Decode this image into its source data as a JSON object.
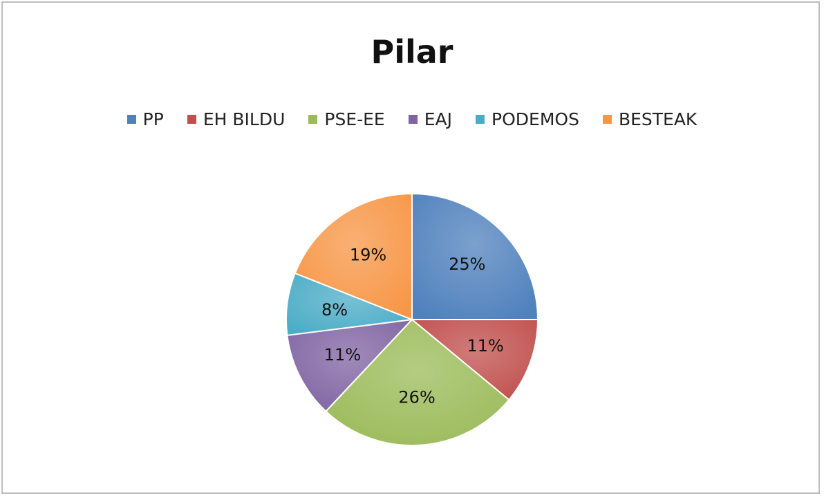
{
  "chart_data": {
    "type": "pie",
    "title": "Pilar",
    "legend_position": "top",
    "categories": [
      "PP",
      "EH BILDU",
      "PSE-EE",
      "EAJ",
      "PODEMOS",
      "BESTEAK"
    ],
    "values": [
      25,
      11,
      26,
      11,
      8,
      19
    ],
    "labels": [
      "25%",
      "11%",
      "26%",
      "11%",
      "8%",
      "19%"
    ],
    "colors": [
      "#4F81BD",
      "#C0504D",
      "#9BBB59",
      "#8064A2",
      "#4BACC6",
      "#F79646"
    ]
  }
}
